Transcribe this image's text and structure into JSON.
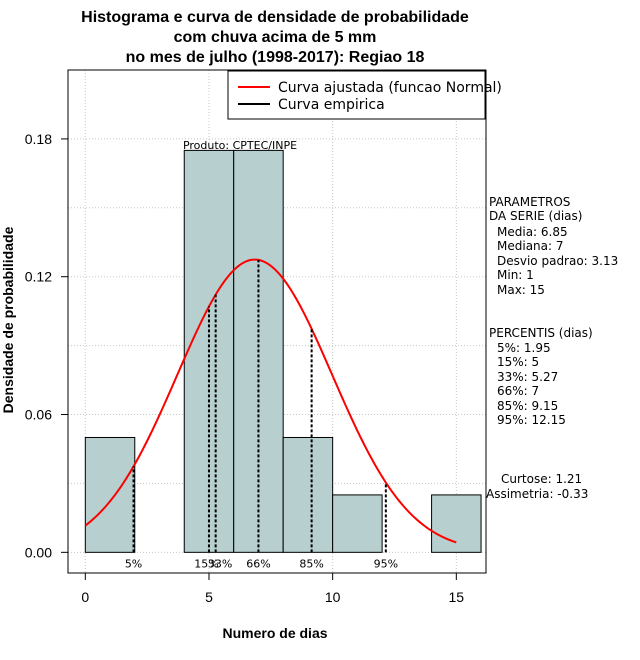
{
  "chart_data": {
    "type": "bar",
    "title": [
      "Histograma e curva de densidade de probabilidade",
      "com chuva acima de 5 mm",
      "no mes de julho (1998-2017): Regiao 18"
    ],
    "xlabel": "Numero de dias",
    "ylabel": "Densidade de probabilidade",
    "xlim": [
      -0.7,
      16.2
    ],
    "ylim": [
      -0.009,
      0.21
    ],
    "x_ticks": [
      0,
      5,
      10,
      15
    ],
    "x_tick_labels": [
      "0",
      "5",
      "10",
      "15"
    ],
    "y_ticks": [
      0.0,
      0.06,
      0.12,
      0.18
    ],
    "y_tick_labels": [
      "0.00",
      "0.06",
      "0.12",
      "0.18"
    ],
    "grid": true,
    "legend_position": "top-right",
    "legend": [
      {
        "label": "Curva ajustada (funcao Normal)",
        "color": "#ff0000"
      },
      {
        "label": "Curva empirica",
        "color": "#000000"
      }
    ],
    "source_label": "Produto: CPTEC/INPE",
    "bins": [
      {
        "x0": 0,
        "x1": 2,
        "density": 0.05
      },
      {
        "x0": 2,
        "x1": 4,
        "density": 0.0
      },
      {
        "x0": 4,
        "x1": 6,
        "density": 0.175
      },
      {
        "x0": 6,
        "x1": 8,
        "density": 0.175
      },
      {
        "x0": 8,
        "x1": 10,
        "density": 0.05
      },
      {
        "x0": 10,
        "x1": 12,
        "density": 0.025
      },
      {
        "x0": 12,
        "x1": 14,
        "density": 0.0
      },
      {
        "x0": 14,
        "x1": 16,
        "density": 0.025
      }
    ],
    "bar_color": "#b7cfcf",
    "normal_curve": {
      "mean": 6.85,
      "sd": 3.13,
      "x_from": 0,
      "x_to": 15,
      "color": "#ff0000"
    },
    "percentile_lines": [
      {
        "label": "5%",
        "x": 1.95,
        "label_x": 1.95
      },
      {
        "label": "15%",
        "x": 5,
        "label_x": 4.9
      },
      {
        "label": "33%",
        "x": 5.27,
        "label_x": 5.45
      },
      {
        "label": "66%",
        "x": 7,
        "label_x": 7
      },
      {
        "label": "85%",
        "x": 9.15,
        "label_x": 9.15
      },
      {
        "label": "95%",
        "x": 12.15,
        "label_x": 12.15
      }
    ],
    "percentile_line_color": "#000000"
  },
  "side_panel": {
    "parameters_title": [
      "PARAMETROS",
      "DA SERIE (dias)"
    ],
    "parameters": [
      "Media: 6.85",
      "Mediana: 7",
      "Desvio padrao: 3.13",
      "Min: 1",
      "Max: 15"
    ],
    "percentiles_title": "PERCENTIS (dias)",
    "percentiles": [
      "5%: 1.95",
      "15%: 5",
      "33%: 5.27",
      "66%: 7",
      "85%: 9.15",
      "95%: 12.15"
    ],
    "curtose": "Curtose: 1.21",
    "assimetria": "Assimetria: -0.33"
  }
}
